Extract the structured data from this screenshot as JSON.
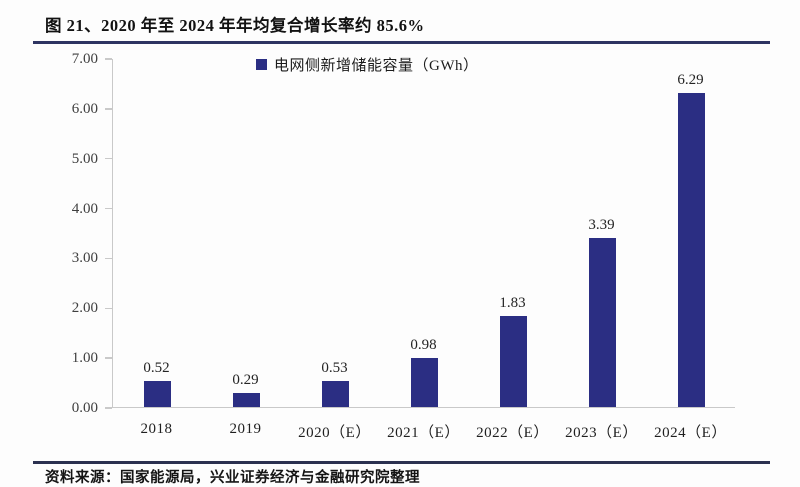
{
  "page": {
    "title": "图 21、2020 年至 2024 年年均复合增长率约 85.6%",
    "source": "资料来源：国家能源局，兴业证券经济与金融研究院整理"
  },
  "chart_data": {
    "type": "bar",
    "title": "图 21、2020 年至 2024 年年均复合增长率约 85.6%",
    "legend": "电网侧新增储能容量（GWh）",
    "legend_position": "top",
    "categories": [
      "2018",
      "2019",
      "2020（E）",
      "2021（E）",
      "2022（E）",
      "2023（E）",
      "2024（E）"
    ],
    "values": [
      0.52,
      0.29,
      0.53,
      0.98,
      1.83,
      3.39,
      6.29
    ],
    "value_labels": [
      "0.52",
      "0.29",
      "0.53",
      "0.98",
      "1.83",
      "3.39",
      "6.29"
    ],
    "xlabel": "",
    "ylabel": "",
    "ylim": [
      0,
      7
    ],
    "yticks": [
      "0.00",
      "1.00",
      "2.00",
      "3.00",
      "4.00",
      "5.00",
      "6.00",
      "7.00"
    ],
    "grid": false,
    "bar_color": "#2b2e83",
    "axis_color": "#c9c9c9",
    "rule_color": "#2e3462"
  }
}
